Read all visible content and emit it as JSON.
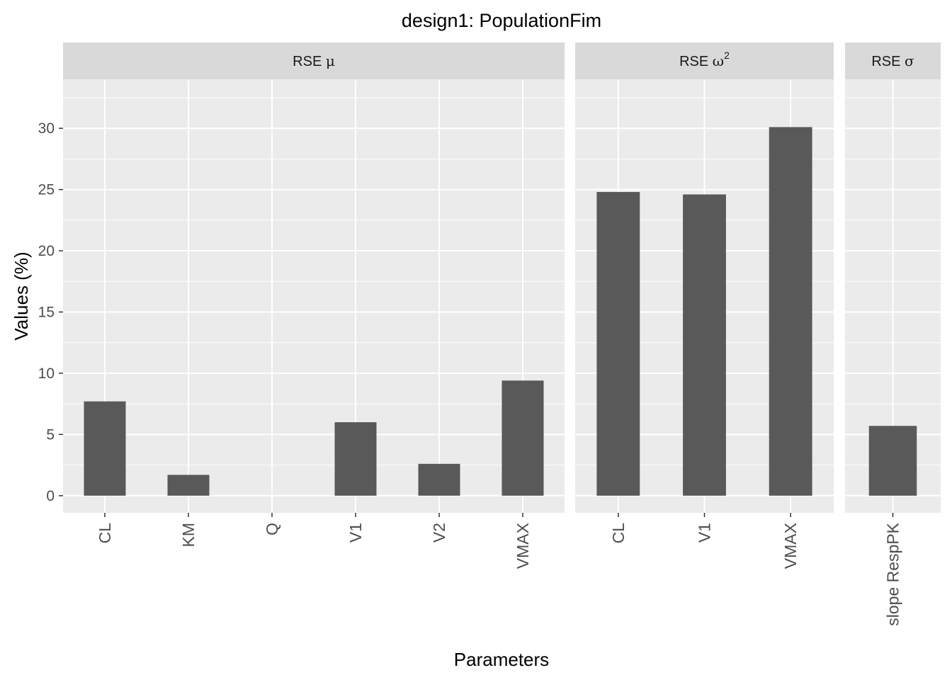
{
  "title": "design1: PopulationFim",
  "xlabel": "Parameters",
  "ylabel": "Values (%)",
  "chart_data": {
    "type": "bar",
    "title": "design1: PopulationFim",
    "xlabel": "Parameters",
    "ylabel": "Values (%)",
    "ylim": [
      -1.4,
      34
    ],
    "yticks": [
      0,
      5,
      10,
      15,
      20,
      25,
      30
    ],
    "grid": true,
    "bar_color": "#595959",
    "panel_bg": "#ebebeb",
    "strip_bg": "#d9d9d9",
    "facets": [
      {
        "strip_base": "RSE ",
        "strip_symbol": "μ",
        "strip_sup": "",
        "categories": [
          "CL",
          "KM",
          "Q",
          "V1",
          "V2",
          "VMAX"
        ],
        "values": [
          7.7,
          1.7,
          0,
          6.0,
          2.6,
          9.4
        ]
      },
      {
        "strip_base": "RSE ",
        "strip_symbol": "ω",
        "strip_sup": "2",
        "categories": [
          "CL",
          "V1",
          "VMAX"
        ],
        "values": [
          24.8,
          24.6,
          30.1
        ]
      },
      {
        "strip_base": "RSE ",
        "strip_symbol": "σ",
        "strip_sup": "",
        "categories": [
          "slope RespPK"
        ],
        "values": [
          5.7
        ]
      }
    ]
  }
}
